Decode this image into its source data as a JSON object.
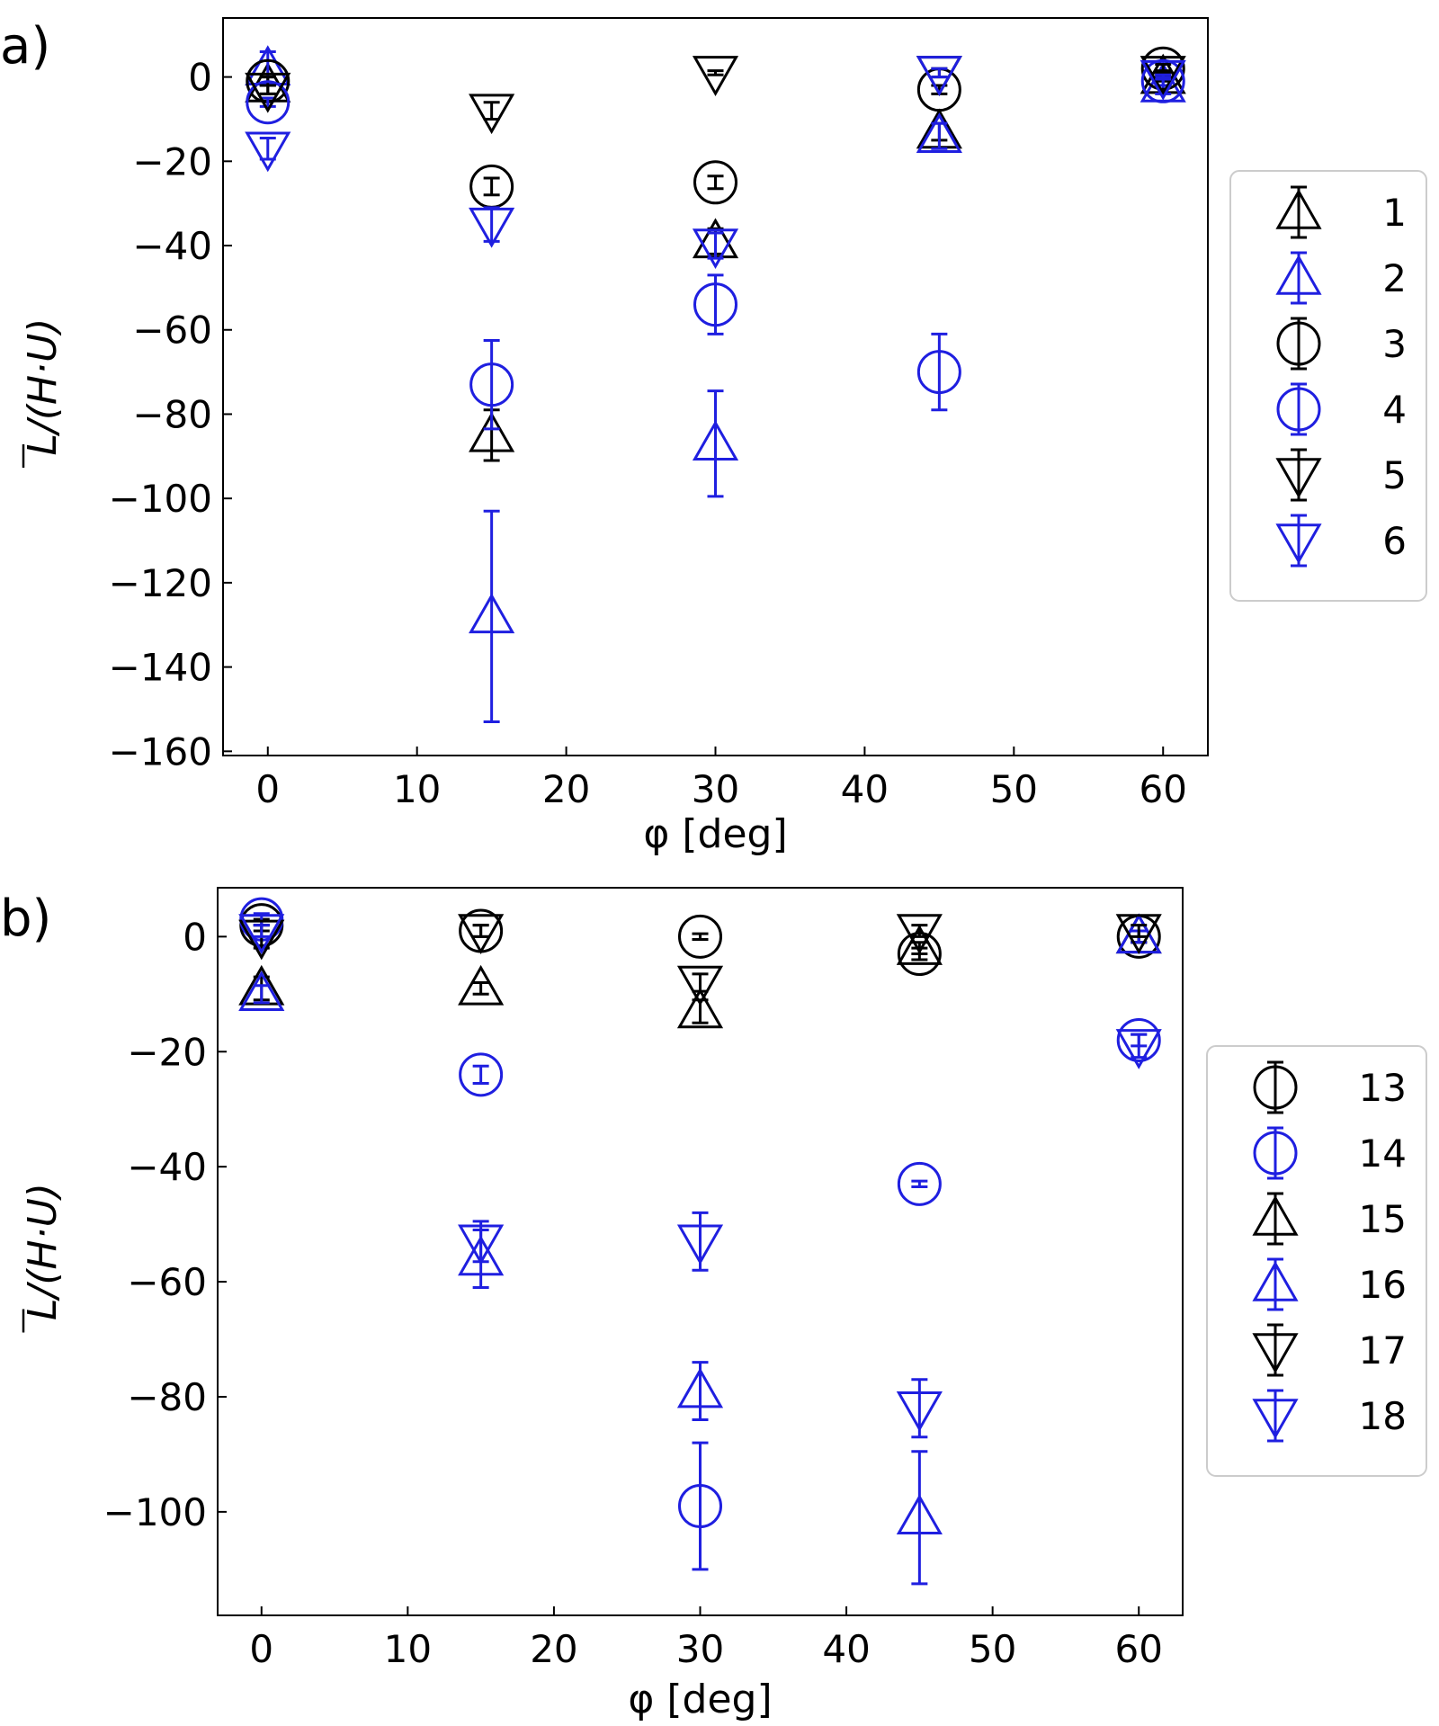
{
  "chart_data": [
    {
      "type": "scatter",
      "panel_label": "a)",
      "xlabel": "φ [deg]",
      "ylabel": "L/(H·U)",
      "ylabel_overbar": "U",
      "xlim": [
        -3,
        63
      ],
      "ylim": [
        -161,
        14
      ],
      "xticks": [
        0,
        10,
        20,
        30,
        40,
        50,
        60
      ],
      "yticks": [
        0,
        -20,
        -40,
        -60,
        -80,
        -100,
        -120,
        -140,
        -160
      ],
      "legend": {
        "placement": "right"
      },
      "series": [
        {
          "name": "1",
          "marker": "triangle-up",
          "color": "#000000",
          "points": [
            {
              "x": 0,
              "y": -2,
              "err": 2
            },
            {
              "x": 15,
              "y": -85,
              "err": 6
            },
            {
              "x": 30,
              "y": -39,
              "err": 3
            },
            {
              "x": 45,
              "y": -13,
              "err": 2
            },
            {
              "x": 60,
              "y": 0,
              "err": 1
            }
          ]
        },
        {
          "name": "2",
          "marker": "triangle-up",
          "color": "#1f1fe0",
          "points": [
            {
              "x": 0,
              "y": 2,
              "err": 4
            },
            {
              "x": 15,
              "y": -128,
              "err": 25
            },
            {
              "x": 30,
              "y": -87,
              "err": 12.5
            },
            {
              "x": 45,
              "y": -14,
              "err": 3
            },
            {
              "x": 60,
              "y": -2,
              "err": 2
            }
          ]
        },
        {
          "name": "3",
          "marker": "circle",
          "color": "#000000",
          "points": [
            {
              "x": 0,
              "y": -1,
              "err": 1
            },
            {
              "x": 15,
              "y": -26,
              "err": 2
            },
            {
              "x": 30,
              "y": -25,
              "err": 1.5
            },
            {
              "x": 45,
              "y": -3,
              "err": 1
            },
            {
              "x": 60,
              "y": 2,
              "err": 1
            }
          ]
        },
        {
          "name": "4",
          "marker": "circle",
          "color": "#1f1fe0",
          "points": [
            {
              "x": 0,
              "y": -6,
              "err": 1
            },
            {
              "x": 15,
              "y": -73,
              "err": 10.5
            },
            {
              "x": 30,
              "y": -54,
              "err": 7
            },
            {
              "x": 45,
              "y": -70,
              "err": 9
            },
            {
              "x": 60,
              "y": -1,
              "err": 1
            }
          ]
        },
        {
          "name": "5",
          "marker": "triangle-down",
          "color": "#000000",
          "points": [
            {
              "x": 0,
              "y": -3,
              "err": 1
            },
            {
              "x": 15,
              "y": -8,
              "err": 2
            },
            {
              "x": 30,
              "y": 1,
              "err": 0.5
            },
            {
              "x": 45,
              "y": 1,
              "err": 1
            },
            {
              "x": 60,
              "y": 1,
              "err": 0.5
            }
          ]
        },
        {
          "name": "6",
          "marker": "triangle-down",
          "color": "#1f1fe0",
          "points": [
            {
              "x": 0,
              "y": -17,
              "err": 2.5
            },
            {
              "x": 15,
              "y": -35,
              "err": 4
            },
            {
              "x": 30,
              "y": -40,
              "err": 3
            },
            {
              "x": 45,
              "y": 1,
              "err": 1
            },
            {
              "x": 60,
              "y": 0,
              "err": 0.5
            }
          ]
        }
      ]
    },
    {
      "type": "scatter",
      "panel_label": "b)",
      "xlabel": "φ [deg]",
      "ylabel": "L/(H·U)",
      "ylabel_overbar": "U",
      "xlim": [
        -3,
        63
      ],
      "ylim": [
        -118,
        8.5
      ],
      "xticks": [
        0,
        10,
        20,
        30,
        40,
        50,
        60
      ],
      "yticks": [
        0,
        -20,
        -40,
        -60,
        -80,
        -100
      ],
      "legend": {
        "placement": "right"
      },
      "series": [
        {
          "name": "13",
          "marker": "circle",
          "color": "#000000",
          "points": [
            {
              "x": 0,
              "y": 2,
              "err": 1
            },
            {
              "x": 15,
              "y": 1,
              "err": 1
            },
            {
              "x": 30,
              "y": 0,
              "err": 0.5
            },
            {
              "x": 45,
              "y": -3,
              "err": 1
            },
            {
              "x": 60,
              "y": 0,
              "err": 1
            }
          ]
        },
        {
          "name": "14",
          "marker": "circle",
          "color": "#1f1fe0",
          "points": [
            {
              "x": 0,
              "y": 3,
              "err": 1
            },
            {
              "x": 15,
              "y": -24,
              "err": 1.5
            },
            {
              "x": 30,
              "y": -99,
              "err": 11
            },
            {
              "x": 45,
              "y": -43,
              "err": 0.5
            },
            {
              "x": 60,
              "y": -18,
              "err": 1
            }
          ]
        },
        {
          "name": "15",
          "marker": "triangle-up",
          "color": "#000000",
          "points": [
            {
              "x": 0,
              "y": -9,
              "err": 2
            },
            {
              "x": 15,
              "y": -9,
              "err": 1
            },
            {
              "x": 30,
              "y": -13,
              "err": 2
            },
            {
              "x": 45,
              "y": -2,
              "err": 1
            },
            {
              "x": 60,
              "y": 0,
              "err": 1
            }
          ]
        },
        {
          "name": "16",
          "marker": "triangle-up",
          "color": "#1f1fe0",
          "points": [
            {
              "x": 0,
              "y": -10,
              "err": 1.5
            },
            {
              "x": 15,
              "y": -56,
              "err": 5
            },
            {
              "x": 30,
              "y": -79,
              "err": 5
            },
            {
              "x": 45,
              "y": -101,
              "err": 11.5
            },
            {
              "x": 60,
              "y": 0,
              "err": 1
            }
          ]
        },
        {
          "name": "17",
          "marker": "triangle-down",
          "color": "#000000",
          "points": [
            {
              "x": 0,
              "y": 0,
              "err": 2
            },
            {
              "x": 15,
              "y": 1,
              "err": 1
            },
            {
              "x": 30,
              "y": -8,
              "err": 1.5
            },
            {
              "x": 45,
              "y": 1,
              "err": 1
            },
            {
              "x": 60,
              "y": 1,
              "err": 1
            }
          ]
        },
        {
          "name": "18",
          "marker": "triangle-down",
          "color": "#1f1fe0",
          "points": [
            {
              "x": 0,
              "y": 1,
              "err": 1
            },
            {
              "x": 15,
              "y": -53,
              "err": 3.5
            },
            {
              "x": 30,
              "y": -53,
              "err": 5
            },
            {
              "x": 45,
              "y": -82,
              "err": 5
            },
            {
              "x": 60,
              "y": -19,
              "err": 2
            }
          ]
        }
      ]
    }
  ]
}
